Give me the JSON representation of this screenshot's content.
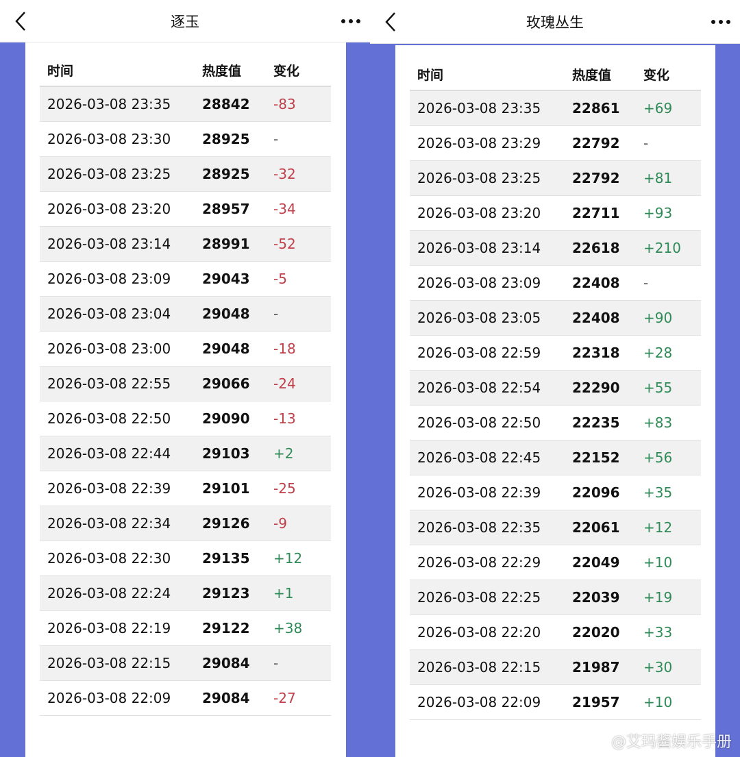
{
  "colors": {
    "accent_bg": "#6370d6",
    "negative": "#c0404a",
    "positive": "#2e8b57"
  },
  "panels": [
    {
      "title": "逐玉",
      "headers": [
        "时间",
        "热度值",
        "变化"
      ],
      "rows": [
        [
          "2026-03-08 23:35",
          "28842",
          "-83"
        ],
        [
          "2026-03-08 23:30",
          "28925",
          "-"
        ],
        [
          "2026-03-08 23:25",
          "28925",
          "-32"
        ],
        [
          "2026-03-08 23:20",
          "28957",
          "-34"
        ],
        [
          "2026-03-08 23:14",
          "28991",
          "-52"
        ],
        [
          "2026-03-08 23:09",
          "29043",
          "-5"
        ],
        [
          "2026-03-08 23:04",
          "29048",
          "-"
        ],
        [
          "2026-03-08 23:00",
          "29048",
          "-18"
        ],
        [
          "2026-03-08 22:55",
          "29066",
          "-24"
        ],
        [
          "2026-03-08 22:50",
          "29090",
          "-13"
        ],
        [
          "2026-03-08 22:44",
          "29103",
          "+2"
        ],
        [
          "2026-03-08 22:39",
          "29101",
          "-25"
        ],
        [
          "2026-03-08 22:34",
          "29126",
          "-9"
        ],
        [
          "2026-03-08 22:30",
          "29135",
          "+12"
        ],
        [
          "2026-03-08 22:24",
          "29123",
          "+1"
        ],
        [
          "2026-03-08 22:19",
          "29122",
          "+38"
        ],
        [
          "2026-03-08 22:15",
          "29084",
          "-"
        ],
        [
          "2026-03-08 22:09",
          "29084",
          "-27"
        ]
      ]
    },
    {
      "title": "玫瑰丛生",
      "headers": [
        "时间",
        "热度值",
        "变化"
      ],
      "rows": [
        [
          "2026-03-08 23:35",
          "22861",
          "+69"
        ],
        [
          "2026-03-08 23:29",
          "22792",
          "-"
        ],
        [
          "2026-03-08 23:25",
          "22792",
          "+81"
        ],
        [
          "2026-03-08 23:20",
          "22711",
          "+93"
        ],
        [
          "2026-03-08 23:14",
          "22618",
          "+210"
        ],
        [
          "2026-03-08 23:09",
          "22408",
          "-"
        ],
        [
          "2026-03-08 23:05",
          "22408",
          "+90"
        ],
        [
          "2026-03-08 22:59",
          "22318",
          "+28"
        ],
        [
          "2026-03-08 22:54",
          "22290",
          "+55"
        ],
        [
          "2026-03-08 22:50",
          "22235",
          "+83"
        ],
        [
          "2026-03-08 22:45",
          "22152",
          "+56"
        ],
        [
          "2026-03-08 22:39",
          "22096",
          "+35"
        ],
        [
          "2026-03-08 22:35",
          "22061",
          "+12"
        ],
        [
          "2026-03-08 22:29",
          "22049",
          "+10"
        ],
        [
          "2026-03-08 22:25",
          "22039",
          "+19"
        ],
        [
          "2026-03-08 22:20",
          "22020",
          "+33"
        ],
        [
          "2026-03-08 22:15",
          "21987",
          "+30"
        ],
        [
          "2026-03-08 22:09",
          "21957",
          "+10"
        ]
      ]
    }
  ],
  "watermark": "@艾玛酱娱乐手册"
}
